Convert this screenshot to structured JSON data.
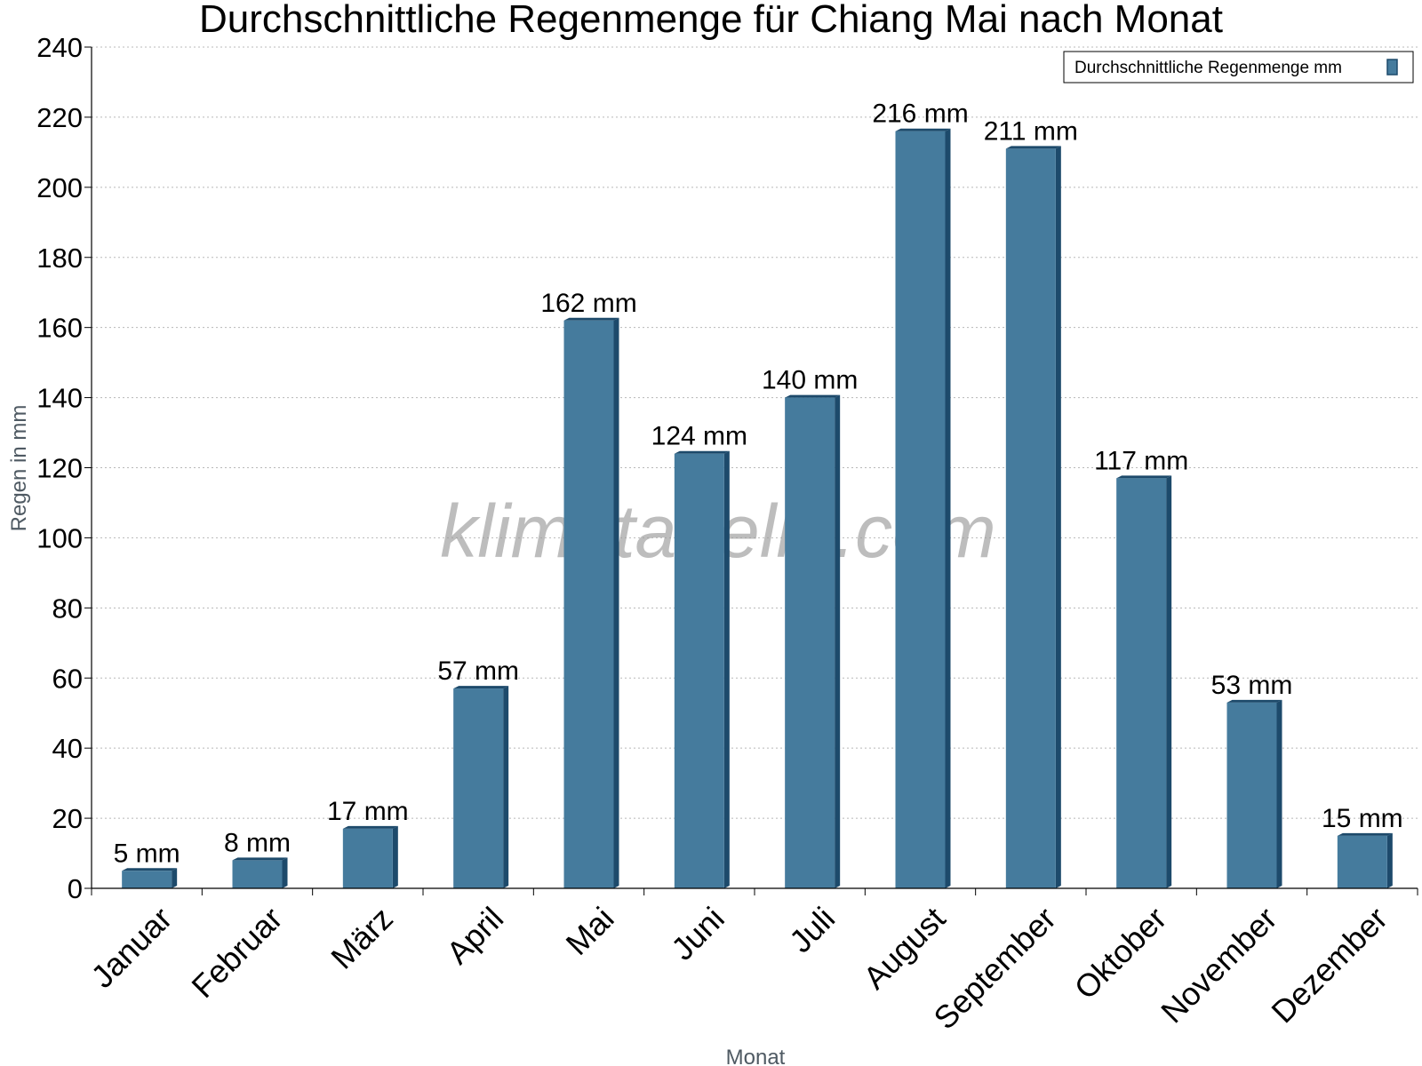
{
  "chart_data": {
    "type": "bar",
    "title": "Durchschnittliche Regenmenge für Chiang Mai nach Monat",
    "xlabel": "Monat",
    "ylabel": "Regen in mm",
    "ylim": [
      0,
      240
    ],
    "yticks": [
      "0",
      "20",
      "40",
      "60",
      "80",
      "100",
      "120",
      "140",
      "160",
      "180",
      "200",
      "220",
      "240"
    ],
    "grid": true,
    "legend_position": "top-right",
    "categories": [
      "Januar",
      "Februar",
      "März",
      "April",
      "Mai",
      "Juni",
      "Juli",
      "August",
      "September",
      "Oktober",
      "November",
      "Dezember"
    ],
    "series": [
      {
        "name": "Durchschnittliche Regenmenge mm",
        "values": [
          5,
          8,
          17,
          57,
          162,
          124,
          140,
          216,
          211,
          117,
          53,
          15
        ],
        "labels": [
          "5 mm",
          "8 mm",
          "17 mm",
          "57 mm",
          "162 mm",
          "124 mm",
          "140 mm",
          "216 mm",
          "211 mm",
          "117 mm",
          "53 mm",
          "15 mm"
        ],
        "color": "#457b9d",
        "side_color": "#1d4a6b"
      }
    ],
    "watermark": "klimatabelle.com"
  }
}
